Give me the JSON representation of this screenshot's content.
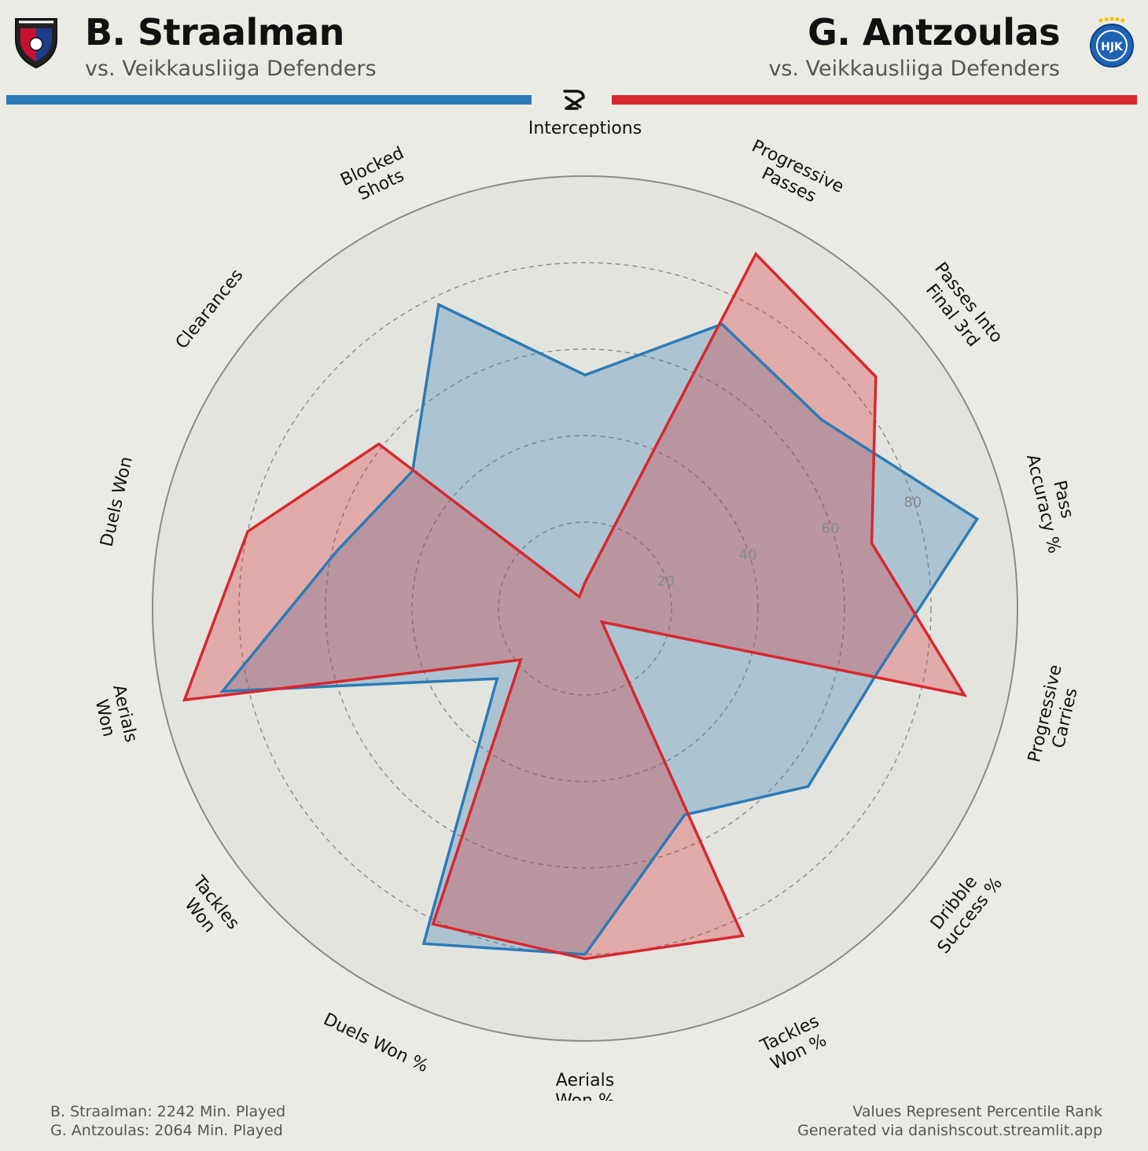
{
  "header": {
    "left": {
      "name": "B. Straalman",
      "subtitle": "vs. Veikkausliiga Defenders",
      "color": "#2c7bb6",
      "crest_icon": "inter-turku-crest-icon"
    },
    "right": {
      "name": "G. Antzoulas",
      "subtitle": "vs. Veikkausliiga Defenders",
      "color": "#d7282f",
      "crest_icon": "hjk-crest-icon"
    },
    "brand_icon": "danishscout-logo-icon"
  },
  "chart_data": {
    "type": "radar",
    "range": [
      0,
      100
    ],
    "ticks": [
      20,
      40,
      60,
      80
    ],
    "grid": true,
    "axes": [
      [
        "Interceptions"
      ],
      [
        "Progressive",
        "Passes"
      ],
      [
        "Passes Into",
        "Final 3rd"
      ],
      [
        "Pass",
        "Accuracy %"
      ],
      [
        "Progressive",
        "Carries"
      ],
      [
        "Dribble",
        "Success %"
      ],
      [
        "Tackles",
        "Won %"
      ],
      [
        "Aerials",
        "Won %"
      ],
      [
        "Duels Won %"
      ],
      [
        "Tackles",
        "Won"
      ],
      [
        "Aerials",
        "Won"
      ],
      [
        "Duels Won"
      ],
      [
        "Clearances"
      ],
      [
        "Blocked",
        "Shots"
      ]
    ],
    "series": [
      {
        "name": "B. Straalman",
        "color": "#2c7bb6",
        "fill": "rgba(44,123,182,0.30)",
        "values": [
          54,
          73,
          70,
          93,
          69,
          66,
          53,
          80,
          86,
          26,
          86,
          59,
          51,
          78
        ]
      },
      {
        "name": "G. Antzoulas",
        "color": "#d7282f",
        "fill": "rgba(215,40,47,0.30)",
        "values": [
          6,
          91,
          86,
          68,
          90,
          5,
          84,
          81,
          81,
          19,
          95,
          80,
          61,
          3
        ]
      }
    ]
  },
  "footer": {
    "left_line1": "B. Straalman: 2242 Min. Played",
    "left_line2": "G. Antzoulas: 2064 Min. Played",
    "right_line1": "Values Represent Percentile Rank",
    "right_line2": "Generated via danishscout.streamlit.app"
  }
}
